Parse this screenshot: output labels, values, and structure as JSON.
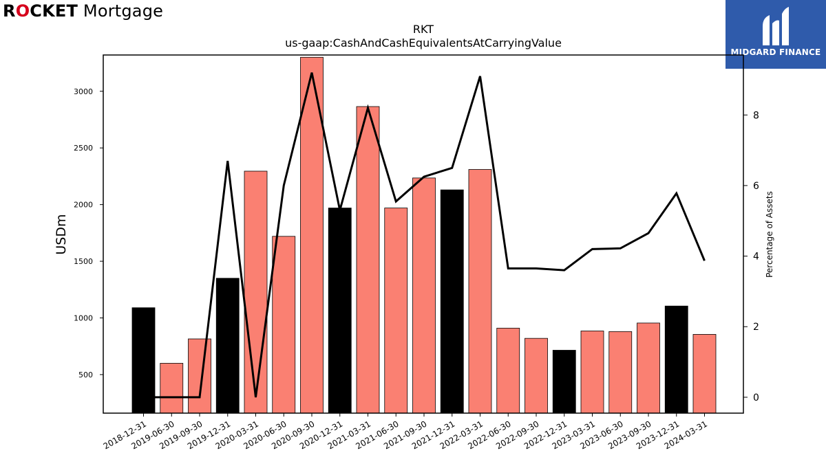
{
  "brand": {
    "part1_pre": "R",
    "part1_o": "O",
    "part1_post": "CKET",
    "part2": " Mortgage"
  },
  "logo": {
    "text": "MIDGARD FINANCE",
    "bg_color": "#2f5bab"
  },
  "chart_data": {
    "type": "bar",
    "title": "RKT",
    "subtitle": "us-gaap:CashAndCashEquivalentsAtCarryingValue",
    "ylabel": "USDm",
    "y2label": "Percentage of Assets",
    "categories": [
      "2018-12-31",
      "2019-06-30",
      "2019-09-30",
      "2019-12-31",
      "2020-03-31",
      "2020-06-30",
      "2020-09-30",
      "2020-12-31",
      "2021-03-31",
      "2021-06-30",
      "2021-09-30",
      "2021-12-31",
      "2022-03-31",
      "2022-06-30",
      "2022-09-30",
      "2022-12-31",
      "2023-03-31",
      "2023-06-30",
      "2023-09-30",
      "2023-12-31",
      "2024-03-31"
    ],
    "series": [
      {
        "type": "bar",
        "values": [
          1090,
          600,
          815,
          1350,
          2295,
          1720,
          3300,
          1970,
          2865,
          1970,
          2235,
          2130,
          2310,
          910,
          820,
          715,
          885,
          880,
          955,
          1105,
          855
        ],
        "colors": [
          "#000000",
          "#fa8072",
          "#fa8072",
          "#000000",
          "#fa8072",
          "#fa8072",
          "#fa8072",
          "#000000",
          "#fa8072",
          "#fa8072",
          "#fa8072",
          "#000000",
          "#fa8072",
          "#fa8072",
          "#fa8072",
          "#000000",
          "#fa8072",
          "#fa8072",
          "#fa8072",
          "#000000",
          "#fa8072"
        ]
      },
      {
        "type": "line",
        "axis": "right",
        "color": "#000000",
        "values": [
          0.0,
          0.0,
          0.0,
          6.7,
          0.0,
          6.0,
          9.2,
          5.3,
          8.2,
          5.55,
          6.25,
          6.5,
          9.1,
          3.65,
          3.65,
          3.6,
          4.2,
          4.22,
          4.65,
          5.78,
          3.87
        ]
      }
    ],
    "yticks": [
      500,
      1000,
      1500,
      2000,
      2500,
      3000
    ],
    "y2ticks": [
      0,
      2,
      4,
      6,
      8
    ],
    "ylim": [
      160,
      3320
    ],
    "y2lim": [
      -0.45,
      9.7
    ],
    "colors": {
      "highlight": "#000000",
      "normal": "#fa8072",
      "line": "#000000"
    },
    "grid": false
  }
}
